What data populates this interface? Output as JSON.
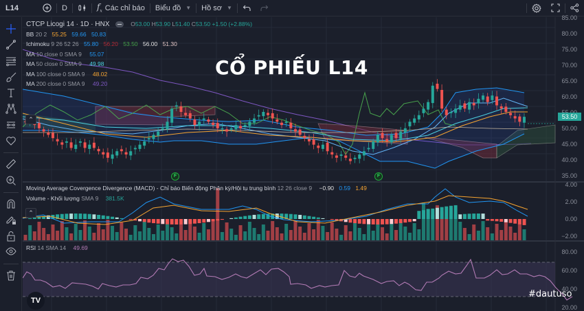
{
  "toolbar": {
    "symbol": "L14",
    "interval": "D",
    "indicators_label": "Các chỉ báo",
    "chart_label": "Biểu đồ",
    "profile_label": "Hồ sơ"
  },
  "icons": {
    "left": [
      "crosshair-icon",
      "trend-line-icon",
      "fib-icon",
      "brush-icon",
      "text-icon",
      "pattern-icon",
      "measure-range-icon",
      "heart-icon",
      "ruler-icon",
      "zoom-in-icon",
      "magnet-icon",
      "lock-drawing-icon",
      "lock-icon",
      "eye-icon",
      "trash-icon"
    ],
    "top_right": [
      "gear-icon",
      "fullscreen-icon",
      "share-icon"
    ]
  },
  "legend": {
    "title": "CTCP Licogi 14 · 1D · HNX",
    "ohlc": {
      "o": "53.00",
      "h": "53.90",
      "l": "51.40",
      "c": "53.50",
      "change": "+1.50 (+2.88%)"
    },
    "bb": {
      "name": "BB",
      "params": "20 2",
      "values": [
        "55.25",
        "59.66",
        "50.83"
      ]
    },
    "ichimoku": {
      "name": "Ichimoku",
      "params": "9 26 52 26",
      "values": [
        "55.80",
        "56.20",
        "53.50",
        "56.00",
        "51.30"
      ]
    },
    "ma10": {
      "name": "MA",
      "params": "10 close 0 SMA 9",
      "value": "55.07"
    },
    "ma50": {
      "name": "MA",
      "params": "50 close 0 SMA 9",
      "value": "49.98"
    },
    "ma100": {
      "name": "MA",
      "params": "100 close 0 SMA 9",
      "value": "48.02"
    },
    "ma200": {
      "name": "MA",
      "params": "200 close 0 SMA 9",
      "value": "49.20"
    },
    "macd": {
      "name": "Moving Average Covergence Divergence (MACD) - Chỉ báo Biến động Phân kỳ/Hội tụ trung bình",
      "params": "12 26 close 9",
      "values": [
        "−0.90",
        "0.59",
        "1.49"
      ]
    },
    "volume": {
      "name": "Volume - Khối lượng",
      "params": "SMA 9",
      "value": "381.5K"
    },
    "rsi": {
      "name": "RSI",
      "params": "14 SMA 14",
      "value": "49.69"
    }
  },
  "overlay": {
    "title": "CỔ PHIẾU L14",
    "watermark": "#dautuso"
  },
  "price_axis": [
    "85.00",
    "80.00",
    "75.00",
    "70.00",
    "65.00",
    "60.00",
    "55.00",
    "50.00",
    "45.00",
    "40.00",
    "35.00"
  ],
  "macd_axis": [
    "4.00",
    "2.00",
    "0.00",
    "−2.00"
  ],
  "rsi_axis": [
    "80.00",
    "60.00",
    "40.00",
    "20.00"
  ],
  "last_price_tag": "53.50",
  "markers": {
    "f": "F"
  },
  "tv_logo": "TV",
  "colors": {
    "up": "#26a69a",
    "down": "#ef5350",
    "bg": "#1b1f2b",
    "rsi": "#b37bb5",
    "ma_orange": "#f7a531",
    "ma_blue": "#2196f3",
    "ma_purple": "#7e57c2"
  },
  "chart_data": {
    "type": "candlestick",
    "title": "CTCP Licogi 14 · 1D · HNX",
    "ylim": [
      33,
      86
    ],
    "grid": true,
    "approx_close": [
      52,
      53,
      51,
      50,
      49,
      48,
      47,
      46,
      45,
      46,
      44,
      45,
      46,
      44,
      45,
      44,
      43,
      42,
      41,
      42,
      43,
      43,
      42,
      43,
      44,
      45,
      46,
      47,
      48,
      49,
      50,
      52,
      56,
      57,
      55,
      54,
      53,
      51,
      52,
      53,
      52,
      51,
      50,
      50,
      49,
      50,
      51,
      50,
      51,
      52,
      53,
      54,
      55,
      54,
      53,
      52,
      51,
      52,
      50,
      49,
      48,
      47,
      46,
      45,
      44,
      45,
      43,
      42,
      41,
      42,
      41,
      40,
      41,
      42,
      43,
      44,
      46,
      48,
      47,
      46,
      48,
      47,
      49,
      50,
      52,
      53,
      54,
      56,
      58,
      63,
      62,
      56,
      54,
      55,
      56,
      57,
      56,
      58,
      57,
      59,
      60,
      58,
      60,
      57,
      56,
      55,
      54,
      53,
      52,
      53.5
    ],
    "macd": {
      "range": [
        -2.5,
        4.5
      ],
      "last": {
        "hist": -0.9,
        "macd": 0.59,
        "signal": 1.49
      }
    },
    "rsi": {
      "range": [
        20,
        85
      ],
      "overbought": 70,
      "oversold": 30,
      "last": 49.69
    }
  }
}
